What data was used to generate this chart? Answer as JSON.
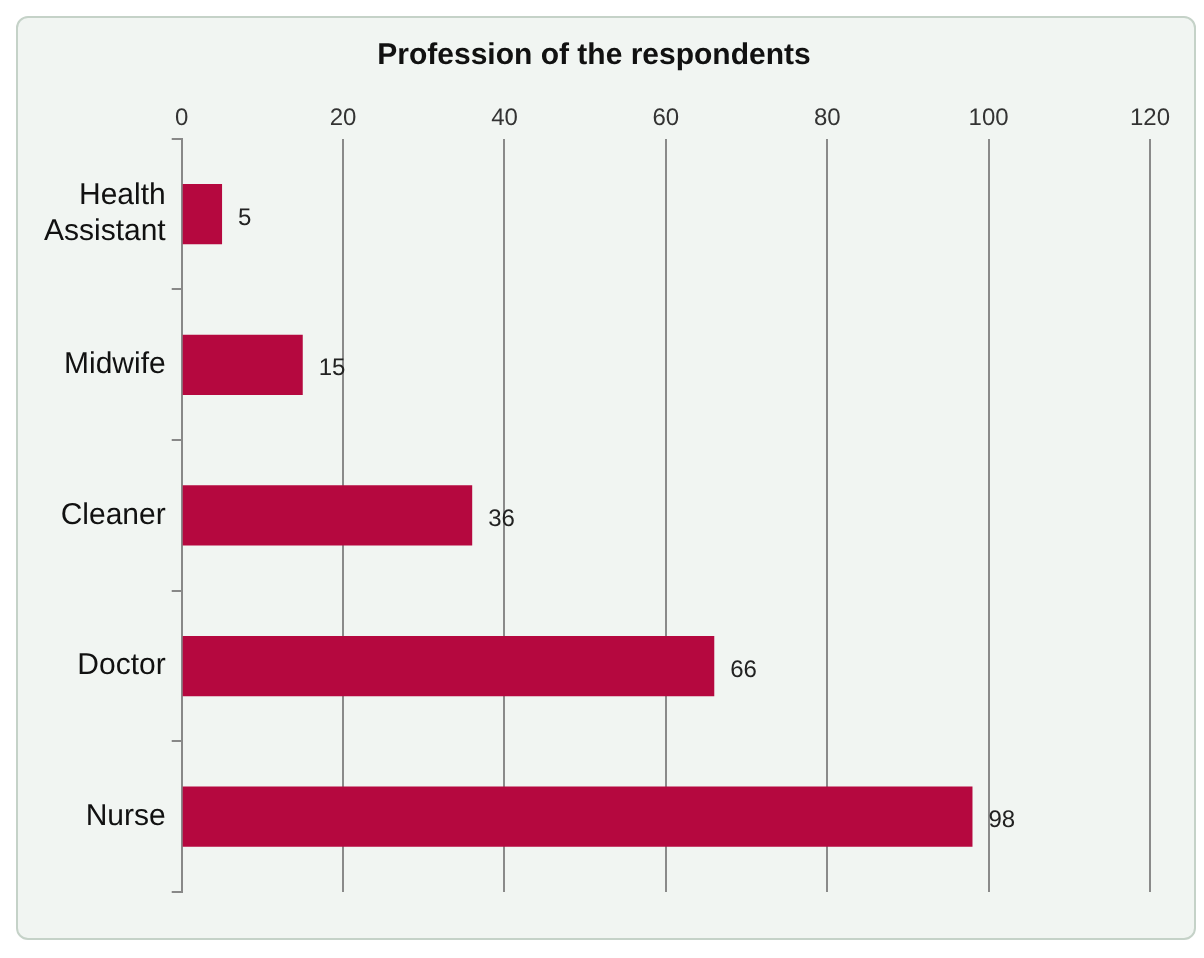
{
  "chart_data": {
    "type": "bar",
    "orientation": "horizontal",
    "title": "Profession of the respondents",
    "categories": [
      "Health Assistant",
      "Midwife",
      "Cleaner",
      "Doctor",
      "Nurse"
    ],
    "values": [
      5,
      15,
      36,
      66,
      98
    ],
    "color": "#b5083f",
    "xlim": [
      0,
      120
    ],
    "xticks": [
      0,
      20,
      40,
      60,
      80,
      100,
      120
    ],
    "grid": "x",
    "data_labels": true,
    "legend": false
  }
}
